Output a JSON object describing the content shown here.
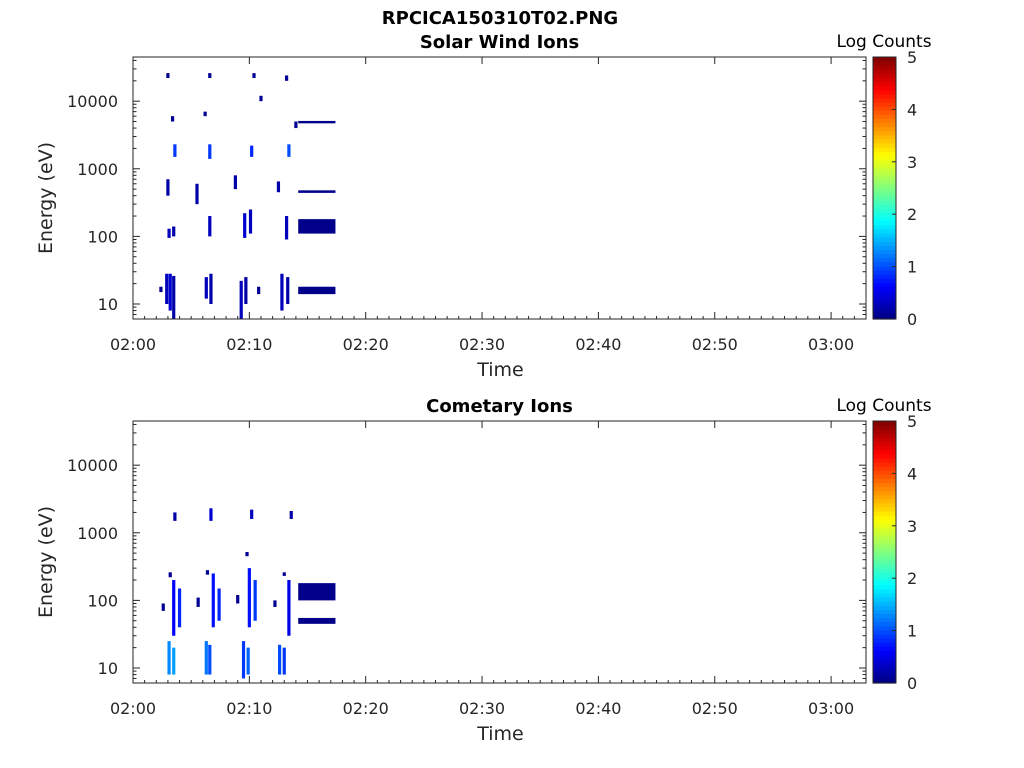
{
  "page_title": "RPCICA150310T02.PNG",
  "chart_data": [
    {
      "type": "heatmap",
      "title": "Solar Wind Ions",
      "xlabel": "Time",
      "ylabel": "Energy (eV)",
      "y_scale": "log",
      "x_ticks": [
        "02:00",
        "02:10",
        "02:20",
        "02:30",
        "02:40",
        "02:50",
        "03:00"
      ],
      "y_ticks": [
        {
          "label": "10",
          "value": 10
        },
        {
          "label": "100",
          "value": 100
        },
        {
          "label": "1000",
          "value": 1000
        },
        {
          "label": "10000",
          "value": 10000
        }
      ],
      "xlim_minutes": [
        0,
        63
      ],
      "ylim": [
        6,
        45000
      ],
      "colorbar": {
        "label": "Log Counts",
        "ticks": [
          "0",
          "1",
          "2",
          "3",
          "4",
          "5"
        ],
        "range": [
          0,
          5
        ],
        "colormap": "jet"
      },
      "cells": [
        {
          "t": 2.9,
          "e0": 10,
          "e1": 28,
          "v": 0.3
        },
        {
          "t": 3.2,
          "e0": 8,
          "e1": 28,
          "v": 0.4
        },
        {
          "t": 3.5,
          "e0": 6,
          "e1": 26,
          "v": 0.2
        },
        {
          "t": 2.4,
          "e0": 15,
          "e1": 18,
          "v": 0.1
        },
        {
          "t": 6.3,
          "e0": 12,
          "e1": 25,
          "v": 0.3
        },
        {
          "t": 6.7,
          "e0": 10,
          "e1": 28,
          "v": 0.2
        },
        {
          "t": 9.3,
          "e0": 6,
          "e1": 22,
          "v": 0.3
        },
        {
          "t": 9.7,
          "e0": 10,
          "e1": 25,
          "v": 0.2
        },
        {
          "t": 12.8,
          "e0": 8,
          "e1": 28,
          "v": 0.3
        },
        {
          "t": 13.3,
          "e0": 10,
          "e1": 25,
          "v": 0.2
        },
        {
          "t": 10.8,
          "e0": 14,
          "e1": 18,
          "v": 0.1
        },
        {
          "t": 3.1,
          "e0": 95,
          "e1": 130,
          "v": 0.3
        },
        {
          "t": 3.5,
          "e0": 100,
          "e1": 140,
          "v": 0.2
        },
        {
          "t": 6.6,
          "e0": 100,
          "e1": 200,
          "v": 0.3
        },
        {
          "t": 9.6,
          "e0": 95,
          "e1": 220,
          "v": 0.4
        },
        {
          "t": 10.1,
          "e0": 110,
          "e1": 250,
          "v": 0.3
        },
        {
          "t": 13.2,
          "e0": 90,
          "e1": 200,
          "v": 0.3
        },
        {
          "t": 3.6,
          "e0": 1500,
          "e1": 2300,
          "v": 0.9
        },
        {
          "t": 6.6,
          "e0": 1400,
          "e1": 2300,
          "v": 0.9
        },
        {
          "t": 10.2,
          "e0": 1500,
          "e1": 2200,
          "v": 0.8
        },
        {
          "t": 13.4,
          "e0": 1500,
          "e1": 2300,
          "v": 1.0
        },
        {
          "t": 3.0,
          "e0": 400,
          "e1": 700,
          "v": 0.2
        },
        {
          "t": 5.5,
          "e0": 300,
          "e1": 600,
          "v": 0.2
        },
        {
          "t": 8.8,
          "e0": 500,
          "e1": 800,
          "v": 0.2
        },
        {
          "t": 12.5,
          "e0": 450,
          "e1": 650,
          "v": 0.2
        },
        {
          "t": 3.4,
          "e0": 5000,
          "e1": 6000,
          "v": 0.1
        },
        {
          "t": 6.2,
          "e0": 6000,
          "e1": 7000,
          "v": 0.1
        },
        {
          "t": 11.0,
          "e0": 10000,
          "e1": 12000,
          "v": 0.1
        },
        {
          "t": 14.0,
          "e0": 4000,
          "e1": 5000,
          "v": 0.1
        },
        {
          "t": 3.0,
          "e0": 22000,
          "e1": 26000,
          "v": 0.1
        },
        {
          "t": 6.6,
          "e0": 22000,
          "e1": 26000,
          "v": 0.1
        },
        {
          "t": 10.4,
          "e0": 22000,
          "e1": 26000,
          "v": 0.1
        },
        {
          "t": 13.2,
          "e0": 20000,
          "e1": 24000,
          "v": 0.1
        }
      ],
      "bands": [
        {
          "t0": 14.2,
          "t1": 17.4,
          "e0": 14,
          "e1": 18,
          "v": 0.05
        },
        {
          "t0": 14.2,
          "t1": 17.4,
          "e0": 110,
          "e1": 180,
          "v": 0.05
        },
        {
          "t0": 14.2,
          "t1": 17.4,
          "e0": 440,
          "e1": 480,
          "v": 0.05
        },
        {
          "t0": 14.2,
          "t1": 17.4,
          "e0": 4700,
          "e1": 5100,
          "v": 0.05
        }
      ]
    },
    {
      "type": "heatmap",
      "title": "Cometary Ions",
      "xlabel": "Time",
      "ylabel": "Energy (eV)",
      "y_scale": "log",
      "x_ticks": [
        "02:00",
        "02:10",
        "02:20",
        "02:30",
        "02:40",
        "02:50",
        "03:00"
      ],
      "y_ticks": [
        {
          "label": "10",
          "value": 10
        },
        {
          "label": "100",
          "value": 100
        },
        {
          "label": "1000",
          "value": 1000
        },
        {
          "label": "10000",
          "value": 10000
        }
      ],
      "xlim_minutes": [
        0,
        63
      ],
      "ylim": [
        6,
        45000
      ],
      "colorbar": {
        "label": "Log Counts",
        "ticks": [
          "0",
          "1",
          "2",
          "3",
          "4",
          "5"
        ],
        "range": [
          0,
          5
        ],
        "colormap": "jet"
      },
      "cells": [
        {
          "t": 3.1,
          "e0": 8,
          "e1": 25,
          "v": 1.3
        },
        {
          "t": 3.5,
          "e0": 8,
          "e1": 20,
          "v": 1.4
        },
        {
          "t": 6.3,
          "e0": 8,
          "e1": 25,
          "v": 1.2
        },
        {
          "t": 6.6,
          "e0": 8,
          "e1": 22,
          "v": 1.0
        },
        {
          "t": 9.5,
          "e0": 7,
          "e1": 25,
          "v": 0.9
        },
        {
          "t": 9.9,
          "e0": 8,
          "e1": 20,
          "v": 1.1
        },
        {
          "t": 12.6,
          "e0": 8,
          "e1": 22,
          "v": 1.0
        },
        {
          "t": 13.0,
          "e0": 8,
          "e1": 20,
          "v": 0.9
        },
        {
          "t": 3.5,
          "e0": 30,
          "e1": 200,
          "v": 0.6
        },
        {
          "t": 4.0,
          "e0": 40,
          "e1": 150,
          "v": 0.8
        },
        {
          "t": 6.9,
          "e0": 40,
          "e1": 250,
          "v": 0.7
        },
        {
          "t": 7.4,
          "e0": 50,
          "e1": 150,
          "v": 0.8
        },
        {
          "t": 10.0,
          "e0": 40,
          "e1": 300,
          "v": 0.7
        },
        {
          "t": 10.5,
          "e0": 50,
          "e1": 200,
          "v": 0.9
        },
        {
          "t": 13.4,
          "e0": 30,
          "e1": 200,
          "v": 0.5
        },
        {
          "t": 3.6,
          "e0": 1500,
          "e1": 2000,
          "v": 0.2
        },
        {
          "t": 6.7,
          "e0": 1500,
          "e1": 2300,
          "v": 0.4
        },
        {
          "t": 10.2,
          "e0": 1600,
          "e1": 2200,
          "v": 0.3
        },
        {
          "t": 13.6,
          "e0": 1600,
          "e1": 2100,
          "v": 0.2
        },
        {
          "t": 2.6,
          "e0": 70,
          "e1": 90,
          "v": 0.1
        },
        {
          "t": 5.6,
          "e0": 80,
          "e1": 110,
          "v": 0.1
        },
        {
          "t": 9.0,
          "e0": 90,
          "e1": 120,
          "v": 0.1
        },
        {
          "t": 12.2,
          "e0": 80,
          "e1": 100,
          "v": 0.1
        },
        {
          "t": 3.2,
          "e0": 220,
          "e1": 260,
          "v": 0.1
        },
        {
          "t": 6.4,
          "e0": 240,
          "e1": 280,
          "v": 0.1
        },
        {
          "t": 9.8,
          "e0": 450,
          "e1": 520,
          "v": 0.1
        },
        {
          "t": 13.0,
          "e0": 230,
          "e1": 260,
          "v": 0.1
        }
      ],
      "bands": [
        {
          "t0": 14.2,
          "t1": 17.4,
          "e0": 45,
          "e1": 55,
          "v": 0.05
        },
        {
          "t0": 14.2,
          "t1": 17.4,
          "e0": 100,
          "e1": 180,
          "v": 0.05
        }
      ]
    }
  ]
}
